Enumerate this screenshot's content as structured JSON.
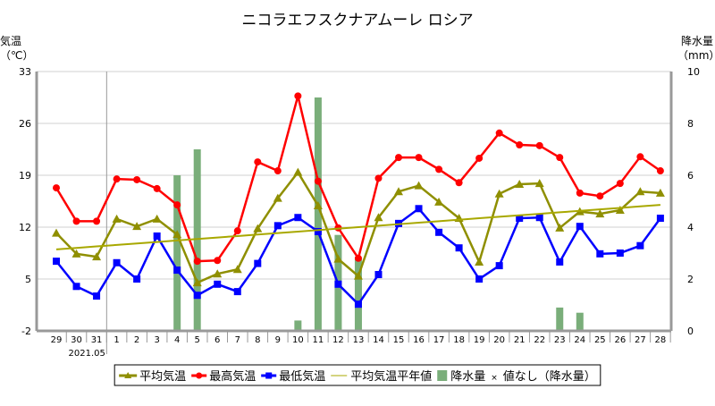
{
  "chart_data": {
    "type": "line",
    "title": "ニコラエフスクナアムーレ ロシア",
    "ylabel_left": [
      "気温",
      "（℃）"
    ],
    "ylabel_right": [
      "降水量",
      "（mm）"
    ],
    "month_label": "2021.05",
    "categories": [
      "29",
      "30",
      "31",
      "1",
      "2",
      "3",
      "4",
      "5",
      "6",
      "7",
      "8",
      "9",
      "10",
      "11",
      "12",
      "13",
      "14",
      "15",
      "16",
      "17",
      "18",
      "19",
      "20",
      "21",
      "22",
      "23",
      "24",
      "25",
      "26",
      "27",
      "28"
    ],
    "ylim_left": [
      -2,
      33
    ],
    "yticks_left": [
      "-2",
      "5",
      "12",
      "19",
      "26",
      "33"
    ],
    "ylim_right": [
      0,
      10
    ],
    "yticks_right": [
      "0",
      "2",
      "4",
      "6",
      "8",
      "10"
    ],
    "series": [
      {
        "name": "平均気温",
        "color": "#8f8f00",
        "marker": "triangle",
        "values": [
          11.2,
          8.4,
          8.0,
          13.1,
          12.1,
          13.1,
          11.0,
          4.5,
          5.7,
          6.3,
          11.8,
          15.9,
          19.4,
          14.9,
          7.7,
          5.4,
          13.3,
          16.8,
          17.6,
          15.4,
          13.2,
          7.3,
          16.5,
          17.8,
          17.9,
          11.9,
          14.1,
          13.8,
          14.3,
          16.8,
          16.6
        ]
      },
      {
        "name": "最高気温",
        "color": "#ff0000",
        "marker": "circle",
        "values": [
          17.3,
          12.8,
          12.8,
          18.5,
          18.4,
          17.2,
          15.0,
          7.4,
          7.5,
          11.5,
          20.8,
          19.6,
          29.7,
          18.2,
          11.9,
          7.8,
          18.6,
          21.4,
          21.4,
          19.8,
          18.0,
          21.3,
          24.7,
          23.1,
          23.0,
          21.4,
          16.6,
          16.2,
          17.9,
          21.5,
          19.6
        ]
      },
      {
        "name": "最低気温",
        "color": "#0000ff",
        "marker": "square",
        "values": [
          7.4,
          4.0,
          2.7,
          7.2,
          5.0,
          10.8,
          6.2,
          2.8,
          4.3,
          3.3,
          7.1,
          12.2,
          13.3,
          11.4,
          4.3,
          1.6,
          5.6,
          12.5,
          14.5,
          11.3,
          9.2,
          5.0,
          6.8,
          13.2,
          13.3,
          7.3,
          12.1,
          8.4,
          8.5,
          9.5,
          13.2
        ]
      },
      {
        "name": "平均気温平年値",
        "color": "#a8a800",
        "marker": "none",
        "values": [
          9.0,
          9.2,
          9.4,
          9.6,
          9.8,
          10.0,
          10.2,
          10.4,
          10.6,
          10.8,
          11.0,
          11.2,
          11.4,
          11.6,
          11.8,
          12.0,
          12.2,
          12.4,
          12.6,
          12.8,
          13.0,
          13.2,
          13.4,
          13.6,
          13.8,
          14.0,
          14.2,
          14.4,
          14.6,
          14.8,
          15.0
        ]
      }
    ],
    "precip": {
      "name": "降水量",
      "color": "#7aae7a",
      "values": [
        0,
        0,
        0,
        0,
        0,
        0,
        6.0,
        7.0,
        0,
        0,
        0,
        0,
        0.4,
        9.0,
        3.7,
        2.8,
        0,
        0,
        0,
        0,
        0,
        0,
        0,
        0,
        0,
        0.9,
        0.7,
        0,
        0,
        0,
        0
      ]
    },
    "legend": [
      "平均気温",
      "最高気温",
      "最低気温",
      "平均気温平年値",
      "降水量",
      "×",
      "値なし（降水量）"
    ],
    "legend_position": "bottom",
    "grid": true
  }
}
